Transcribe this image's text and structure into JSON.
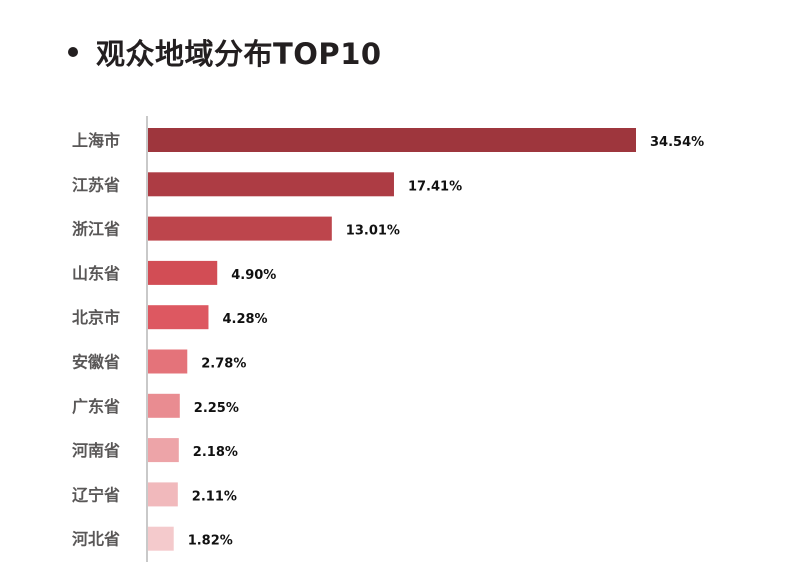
{
  "chart_data": {
    "type": "bar",
    "orientation": "horizontal",
    "title": "观众地域分布TOP10",
    "categories": [
      "上海市",
      "江苏省",
      "浙江省",
      "山东省",
      "北京市",
      "安徽省",
      "广东省",
      "河南省",
      "辽宁省",
      "河北省"
    ],
    "values": [
      34.54,
      17.41,
      13.01,
      4.9,
      4.28,
      2.78,
      2.25,
      2.18,
      2.11,
      1.82
    ],
    "value_labels": [
      "34.54%",
      "17.41%",
      "13.01%",
      "4.90%",
      "4.28%",
      "2.78%",
      "2.25%",
      "2.18%",
      "2.11%",
      "1.82%"
    ],
    "value_unit": "%",
    "xlim": [
      0,
      34.54
    ],
    "grid": false,
    "legend": "none",
    "colors": [
      "#9e363d",
      "#ad3c44",
      "#bd454c",
      "#d24d55",
      "#dd5861",
      "#e4737a",
      "#e98c91",
      "#eda4a8",
      "#f1b9bc",
      "#f4cacc"
    ]
  }
}
